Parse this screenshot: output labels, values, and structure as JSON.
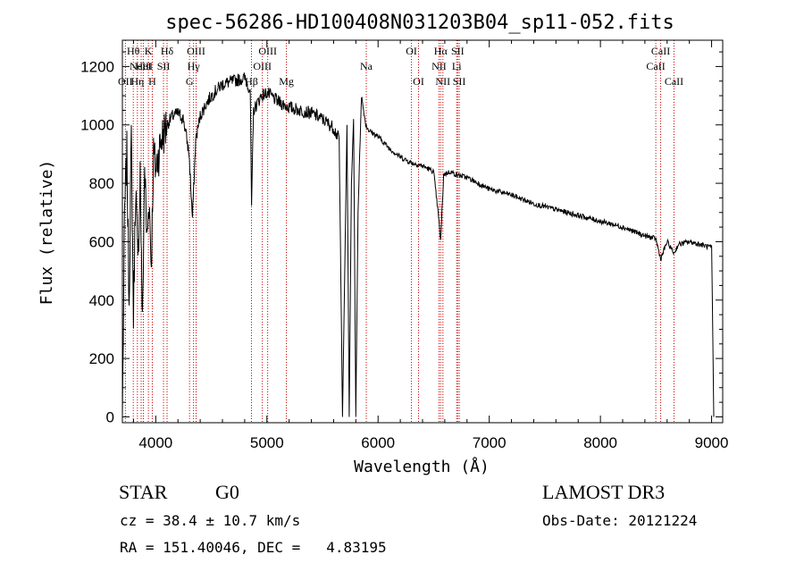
{
  "chart_data": {
    "type": "line",
    "title": "spec-56286-HD100408N031203B04_sp11-052.fits",
    "xlabel": "Wavelength (Å)",
    "ylabel": "Flux (relative)",
    "xlim": [
      3700,
      9100
    ],
    "ylim": [
      -20,
      1290
    ],
    "xticks": [
      4000,
      5000,
      6000,
      7000,
      8000,
      9000
    ],
    "yticks": [
      0,
      200,
      400,
      600,
      800,
      1000,
      1200
    ],
    "line_color": "#000000",
    "marker_color": "#cc0000",
    "spectrum": {
      "x": [
        3700,
        3720,
        3740,
        3760,
        3780,
        3800,
        3820,
        3840,
        3860,
        3880,
        3900,
        3920,
        3940,
        3960,
        3980,
        4000,
        4050,
        4100,
        4150,
        4200,
        4250,
        4300,
        4330,
        4360,
        4400,
        4450,
        4500,
        4600,
        4700,
        4800,
        4850,
        4862,
        4880,
        4950,
        5000,
        5100,
        5200,
        5300,
        5400,
        5500,
        5600,
        5650,
        5680,
        5700,
        5720,
        5740,
        5760,
        5780,
        5800,
        5820,
        5850,
        5890,
        5920,
        6000,
        6100,
        6200,
        6300,
        6400,
        6500,
        6540,
        6563,
        6590,
        6650,
        6700,
        6800,
        6900,
        7000,
        7200,
        7400,
        7600,
        7800,
        8000,
        8200,
        8400,
        8498,
        8542,
        8600,
        8662,
        8700,
        8800,
        8900,
        9000,
        9010,
        9020
      ],
      "y": [
        0,
        700,
        900,
        400,
        950,
        350,
        800,
        500,
        850,
        300,
        870,
        600,
        750,
        520,
        900,
        850,
        950,
        1000,
        1030,
        1040,
        1020,
        900,
        680,
        950,
        1030,
        1070,
        1100,
        1140,
        1150,
        1160,
        1120,
        720,
        1050,
        1100,
        1110,
        1080,
        1060,
        1050,
        1040,
        1020,
        990,
        950,
        0,
        500,
        1000,
        0,
        800,
        1020,
        0,
        700,
        1100,
        1000,
        980,
        960,
        920,
        890,
        870,
        860,
        840,
        700,
        600,
        830,
        840,
        830,
        820,
        800,
        780,
        760,
        730,
        710,
        690,
        670,
        650,
        620,
        610,
        540,
        600,
        560,
        590,
        600,
        590,
        580,
        300,
        0
      ]
    },
    "line_markers": [
      {
        "x": 3727,
        "label": "OII",
        "row": 2
      },
      {
        "x": 3798,
        "label": "Hθ",
        "row": 0
      },
      {
        "x": 3835,
        "label": "Hη",
        "row": 2
      },
      {
        "x": 3869,
        "label": "NeIII",
        "row": 1
      },
      {
        "x": 3889,
        "label": "HeI",
        "row": 1
      },
      {
        "x": 3934,
        "label": "K",
        "row": 0
      },
      {
        "x": 3969,
        "label": "H",
        "row": 2
      },
      {
        "x": 4070,
        "label": "SII",
        "row": 1
      },
      {
        "x": 4102,
        "label": "Hδ",
        "row": 0
      },
      {
        "x": 4304,
        "label": "G",
        "row": 2
      },
      {
        "x": 4340,
        "label": "Hγ",
        "row": 1
      },
      {
        "x": 4363,
        "label": "OIII",
        "row": 0
      },
      {
        "x": 4861,
        "label": "Hβ",
        "row": 2
      },
      {
        "x": 4959,
        "label": "OIII",
        "row": 1
      },
      {
        "x": 5007,
        "label": "OIII",
        "row": 0
      },
      {
        "x": 5175,
        "label": "Mg",
        "row": 2
      },
      {
        "x": 5894,
        "label": "Na",
        "row": 1
      },
      {
        "x": 6300,
        "label": "OI",
        "row": 0
      },
      {
        "x": 6364,
        "label": "OI",
        "row": 2
      },
      {
        "x": 6548,
        "label": "NII",
        "row": 1
      },
      {
        "x": 6563,
        "label": "Hα",
        "row": 0
      },
      {
        "x": 6583,
        "label": "NII",
        "row": 2
      },
      {
        "x": 6707,
        "label": "Li",
        "row": 1
      },
      {
        "x": 6716,
        "label": "SII",
        "row": 0
      },
      {
        "x": 6730,
        "label": "SII",
        "row": 2
      },
      {
        "x": 8498,
        "label": "CaII",
        "row": 1
      },
      {
        "x": 8542,
        "label": "CaII",
        "row": 0
      },
      {
        "x": 8662,
        "label": "CaII",
        "row": 2
      }
    ]
  },
  "info": {
    "object_class": "STAR",
    "subclass": "G0",
    "survey": "LAMOST DR3",
    "cz_line": "cz = 38.4 ± 10.7 km/s",
    "obs_date_line": "Obs-Date: 20121224",
    "coords_line": "RA = 151.40046, DEC =   4.83195"
  }
}
